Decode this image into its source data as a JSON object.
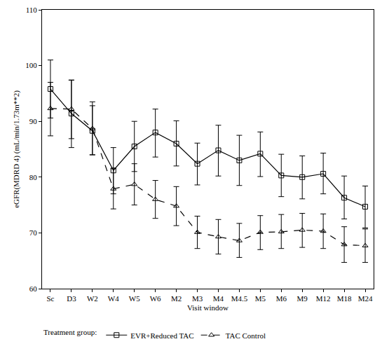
{
  "chart_data": {
    "type": "line",
    "x_label": "Visit window",
    "y_label": "eGFR(MDRD 4) (mL/min/1.73m**2)",
    "legend_title": "Treatment group:",
    "legend": "bottom",
    "grid": false,
    "categories": [
      "Sc",
      "D3",
      "W2",
      "W4",
      "W5",
      "W6",
      "M2",
      "M3",
      "M4",
      "M4.5",
      "M5",
      "M6",
      "M9",
      "M12",
      "M18",
      "M24"
    ],
    "ylim": [
      60,
      110
    ],
    "yticks": [
      60,
      70,
      80,
      90,
      100,
      110
    ],
    "series": [
      {
        "name": "EVR+Reduced TAC",
        "color": "#000000",
        "marker": "square-open",
        "line_style": "solid",
        "values": [
          95.8,
          91.4,
          88.3,
          81.2,
          85.5,
          88.0,
          86.0,
          82.4,
          84.8,
          83.0,
          84.2,
          80.3,
          80.0,
          80.6,
          76.3,
          74.7
        ],
        "upper": [
          101.0,
          97.4,
          92.8,
          85.3,
          90.0,
          92.2,
          90.1,
          86.1,
          89.3,
          87.5,
          88.1,
          84.1,
          83.8,
          84.3,
          80.2,
          78.4
        ],
        "lower": [
          90.6,
          85.3,
          84.0,
          77.0,
          81.0,
          83.6,
          82.0,
          78.6,
          80.2,
          78.5,
          80.1,
          76.5,
          76.1,
          77.0,
          72.5,
          70.9
        ]
      },
      {
        "name": "TAC Control",
        "color": "#000000",
        "marker": "triangle-up-open",
        "line_style": "dash",
        "values": [
          92.3,
          92.2,
          88.7,
          77.9,
          78.7,
          76.0,
          74.8,
          70.1,
          69.3,
          68.6,
          70.1,
          70.2,
          70.5,
          70.3,
          67.9,
          67.7
        ],
        "upper": [
          97.0,
          97.4,
          93.5,
          81.5,
          82.4,
          79.4,
          78.3,
          73.0,
          72.4,
          71.7,
          73.1,
          73.3,
          73.5,
          73.4,
          71.1,
          70.7
        ],
        "lower": [
          87.4,
          86.9,
          84.0,
          74.3,
          75.0,
          72.6,
          71.3,
          67.2,
          66.2,
          65.6,
          67.0,
          67.2,
          67.4,
          67.2,
          64.7,
          64.7
        ]
      }
    ]
  }
}
